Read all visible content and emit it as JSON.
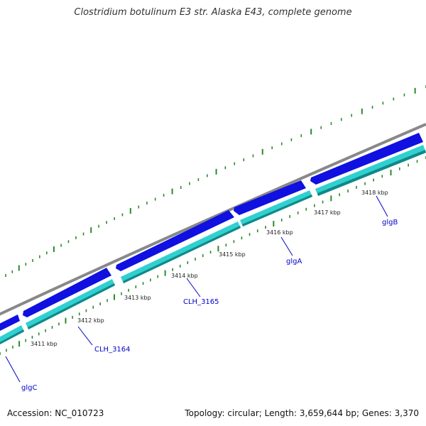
{
  "title": "Clostridium botulinum E3 str. Alaska E43, complete genome",
  "footer": {
    "accession": "Accession: NC_010723",
    "summary": "Topology: circular; Length: 3,659,644 bp; Genes: 3,370"
  },
  "scale_labels": [
    "3411 kbp",
    "3412 kbp",
    "3413 kbp",
    "3414 kbp",
    "3415 kbp",
    "3416 kbp",
    "3417 kbp",
    "3418 kbp"
  ],
  "genes": [
    {
      "name": "glgC",
      "color_forward": "#1010e0",
      "color_cds": "#30d0d0"
    },
    {
      "name": "CLH_3164",
      "color_forward": "#1010e0",
      "color_cds": "#30d0d0"
    },
    {
      "name": "CLH_3165",
      "color_forward": "#1010e0",
      "color_cds": "#30d0d0"
    },
    {
      "name": "glgA",
      "color_forward": "#1010e0",
      "color_cds": "#30d0d0"
    },
    {
      "name": "glgB",
      "color_forward": "#1010e0",
      "color_cds": "#30d0d0"
    }
  ],
  "colors": {
    "backbone": "#888888",
    "gene_forward": "#1010e0",
    "gene_cds": "#30d0d0",
    "gene_cds_shadow": "#108888",
    "gc_ticks": "#2a8a2a",
    "label": "#0000cc"
  }
}
